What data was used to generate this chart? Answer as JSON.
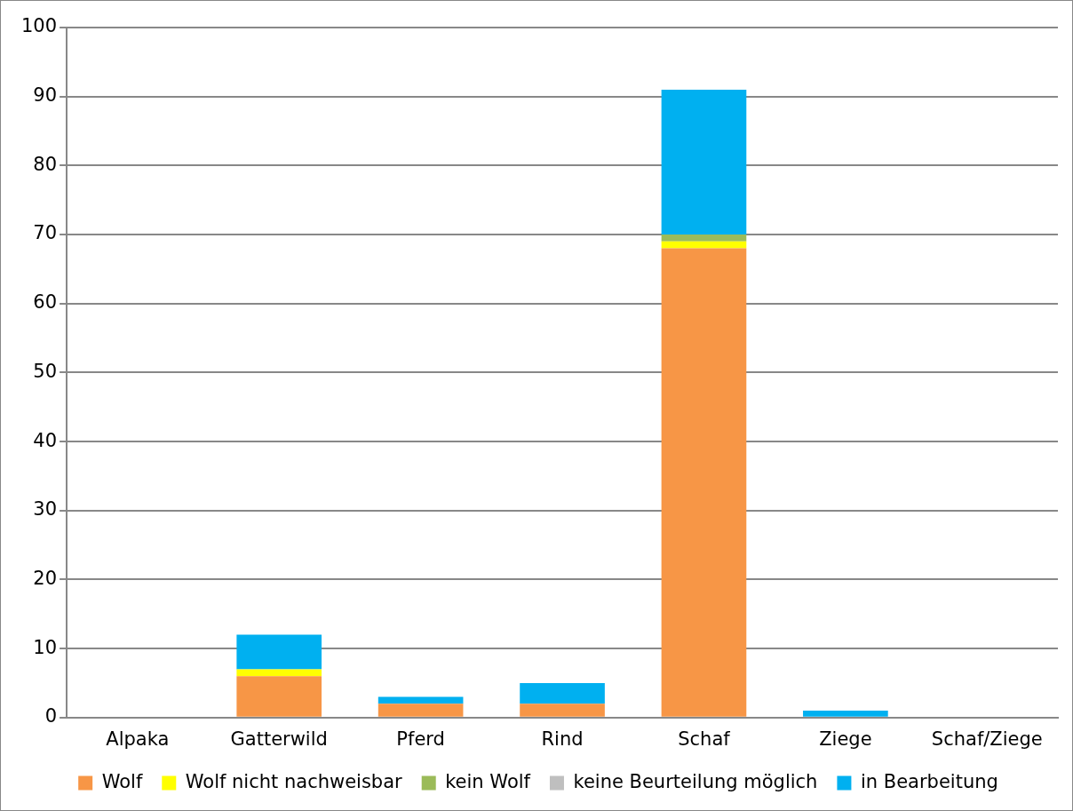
{
  "chart_data": {
    "type": "bar",
    "stacked": true,
    "categories": [
      "Alpaka",
      "Gatterwild",
      "Pferd",
      "Rind",
      "Schaf",
      "Ziege",
      "Schaf/Ziege"
    ],
    "series": [
      {
        "name": "Wolf",
        "color": "#f79646",
        "values": [
          0,
          6,
          2,
          2,
          68,
          0,
          0
        ]
      },
      {
        "name": "Wolf nicht nachweisbar",
        "color": "#ffff00",
        "values": [
          0,
          1,
          0,
          0,
          1,
          0,
          0
        ]
      },
      {
        "name": "kein Wolf",
        "color": "#9bbb59",
        "values": [
          0,
          0,
          0,
          0,
          1,
          0,
          0
        ]
      },
      {
        "name": "keine Beurteilung möglich",
        "color": "#bfbfbf",
        "values": [
          0,
          0,
          0,
          0,
          0,
          0,
          0
        ]
      },
      {
        "name": "in Bearbeitung",
        "color": "#00b0f0",
        "values": [
          0,
          5,
          1,
          3,
          21,
          1,
          0
        ]
      }
    ],
    "ylim": [
      0,
      100
    ],
    "yticks": [
      0,
      10,
      20,
      30,
      40,
      50,
      60,
      70,
      80,
      90,
      100
    ],
    "grid": "y",
    "legend": "bottom"
  }
}
